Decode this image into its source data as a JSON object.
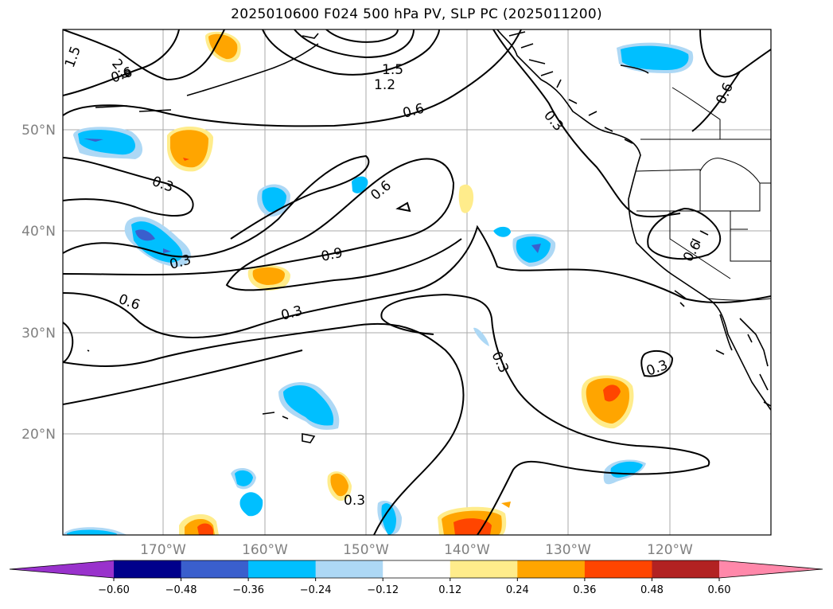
{
  "title": "2025010600 F024 500 hPa PV, SLP PC (2025011200)",
  "map": {
    "lon_labels": [
      "170°W",
      "160°W",
      "150°W",
      "140°W",
      "130°W",
      "120°W"
    ],
    "lat_labels": [
      "50°N",
      "40°N",
      "30°N",
      "20°N"
    ],
    "contour_labels": [
      "1.5",
      "2.9",
      "0.6",
      "1.5",
      "1.2",
      "0.6",
      "0.3",
      "0.6",
      "0.3",
      "0.6",
      "0.3",
      "0.9",
      "0.6",
      "0.3",
      "0.3",
      "0.3",
      "0.6",
      "0.3",
      "0.3"
    ]
  },
  "colorbar": {
    "ticks": [
      "−0.60",
      "−0.48",
      "−0.36",
      "−0.24",
      "−0.12",
      "0.12",
      "0.24",
      "0.36",
      "0.48",
      "0.60"
    ],
    "colors": [
      "#9932cc",
      "#00008b",
      "#3a5fcd",
      "#00bfff",
      "#add8f5",
      "#ffffff",
      "#ffec8b",
      "#ffa500",
      "#ff4500",
      "#b22222",
      "#ff88aa"
    ]
  }
}
